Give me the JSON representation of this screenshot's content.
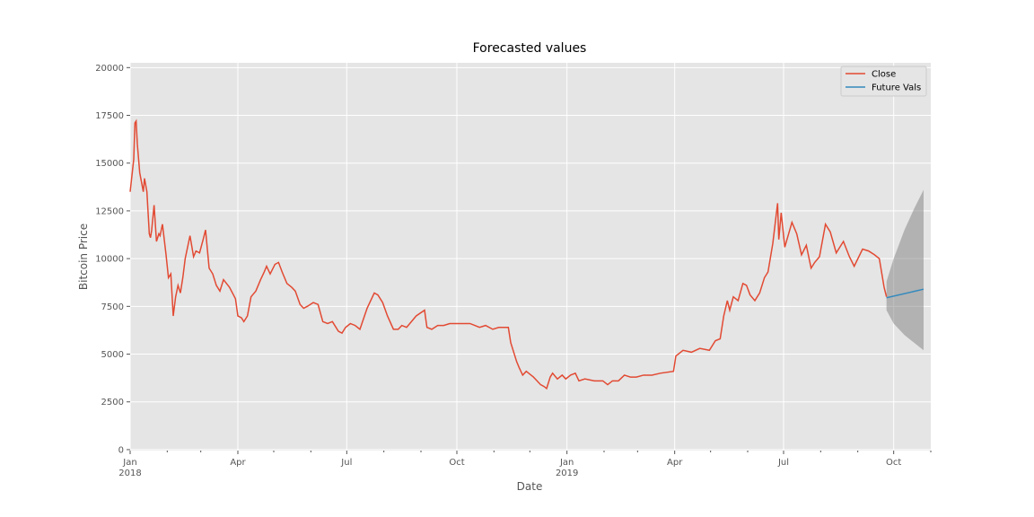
{
  "chart_data": {
    "type": "line",
    "title": "Forecasted values",
    "xlabel": "Date",
    "ylabel": "Bitcoin Price",
    "xlim": [
      "2018-01-01",
      "2019-11-01"
    ],
    "ylim": [
      -50,
      20250
    ],
    "yticks": [
      0,
      2500,
      5000,
      7500,
      10000,
      12500,
      15000,
      17500,
      20000
    ],
    "xticks": [
      {
        "value": "2018-01-01",
        "label": "Jan\n2018"
      },
      {
        "value": "2018-04-01",
        "label": "Apr"
      },
      {
        "value": "2018-07-01",
        "label": "Jul"
      },
      {
        "value": "2018-10-01",
        "label": "Oct"
      },
      {
        "value": "2019-01-01",
        "label": "Jan\n2019"
      },
      {
        "value": "2019-04-01",
        "label": "Apr"
      },
      {
        "value": "2019-07-01",
        "label": "Jul"
      },
      {
        "value": "2019-10-01",
        "label": "Oct"
      }
    ],
    "xticks_minor": [
      "2018-02-01",
      "2018-03-01",
      "2018-05-01",
      "2018-06-01",
      "2018-08-01",
      "2018-09-01",
      "2018-11-01",
      "2018-12-01",
      "2019-02-01",
      "2019-03-01",
      "2019-05-01",
      "2019-06-01",
      "2019-08-01",
      "2019-09-01",
      "2019-11-01"
    ],
    "grid": true,
    "legend": "upper right",
    "series": [
      {
        "name": "Close",
        "color": "#e24a33",
        "x": [
          "2018-01-01",
          "2018-01-04",
          "2018-01-05",
          "2018-01-06",
          "2018-01-07",
          "2018-01-09",
          "2018-01-12",
          "2018-01-13",
          "2018-01-15",
          "2018-01-17",
          "2018-01-18",
          "2018-01-19",
          "2018-01-21",
          "2018-01-23",
          "2018-01-25",
          "2018-01-26",
          "2018-01-28",
          "2018-01-31",
          "2018-02-02",
          "2018-02-04",
          "2018-02-06",
          "2018-02-08",
          "2018-02-10",
          "2018-02-12",
          "2018-02-14",
          "2018-02-16",
          "2018-02-20",
          "2018-02-23",
          "2018-02-25",
          "2018-02-28",
          "2018-03-03",
          "2018-03-05",
          "2018-03-08",
          "2018-03-11",
          "2018-03-14",
          "2018-03-17",
          "2018-03-20",
          "2018-03-25",
          "2018-03-30",
          "2018-04-01",
          "2018-04-04",
          "2018-04-06",
          "2018-04-09",
          "2018-04-12",
          "2018-04-16",
          "2018-04-20",
          "2018-04-23",
          "2018-04-25",
          "2018-04-28",
          "2018-05-02",
          "2018-05-05",
          "2018-05-08",
          "2018-05-12",
          "2018-05-16",
          "2018-05-19",
          "2018-05-23",
          "2018-05-26",
          "2018-05-29",
          "2018-06-03",
          "2018-06-07",
          "2018-06-11",
          "2018-06-15",
          "2018-06-19",
          "2018-06-24",
          "2018-06-27",
          "2018-06-30",
          "2018-07-04",
          "2018-07-08",
          "2018-07-12",
          "2018-07-18",
          "2018-07-24",
          "2018-07-27",
          "2018-07-31",
          "2018-08-04",
          "2018-08-09",
          "2018-08-13",
          "2018-08-16",
          "2018-08-20",
          "2018-08-24",
          "2018-08-28",
          "2018-09-04",
          "2018-09-06",
          "2018-09-10",
          "2018-09-15",
          "2018-09-20",
          "2018-09-25",
          "2018-09-30",
          "2018-10-05",
          "2018-10-12",
          "2018-10-20",
          "2018-10-25",
          "2018-10-31",
          "2018-11-05",
          "2018-11-13",
          "2018-11-15",
          "2018-11-20",
          "2018-11-22",
          "2018-11-25",
          "2018-11-28",
          "2018-11-30",
          "2018-12-04",
          "2018-12-10",
          "2018-12-13",
          "2018-12-15",
          "2018-12-18",
          "2018-12-20",
          "2018-12-24",
          "2018-12-28",
          "2018-12-31",
          "2019-01-04",
          "2019-01-08",
          "2019-01-11",
          "2019-01-16",
          "2019-01-24",
          "2019-01-31",
          "2019-02-04",
          "2019-02-08",
          "2019-02-13",
          "2019-02-18",
          "2019-02-23",
          "2019-02-28",
          "2019-03-06",
          "2019-03-13",
          "2019-03-20",
          "2019-03-31",
          "2019-04-02",
          "2019-04-08",
          "2019-04-15",
          "2019-04-22",
          "2019-04-30",
          "2019-05-05",
          "2019-05-09",
          "2019-05-12",
          "2019-05-15",
          "2019-05-17",
          "2019-05-20",
          "2019-05-24",
          "2019-05-28",
          "2019-05-31",
          "2019-06-03",
          "2019-06-07",
          "2019-06-11",
          "2019-06-15",
          "2019-06-18",
          "2019-06-22",
          "2019-06-26",
          "2019-06-27",
          "2019-06-29",
          "2019-07-02",
          "2019-07-08",
          "2019-07-12",
          "2019-07-16",
          "2019-07-20",
          "2019-07-24",
          "2019-07-27",
          "2019-07-31",
          "2019-08-05",
          "2019-08-09",
          "2019-08-14",
          "2019-08-20",
          "2019-08-25",
          "2019-08-29",
          "2019-09-05",
          "2019-09-10",
          "2019-09-15",
          "2019-09-19",
          "2019-09-23",
          "2019-09-25"
        ],
        "values": [
          13500,
          15200,
          17100,
          17200,
          16000,
          14500,
          13500,
          14200,
          13500,
          11300,
          11100,
          11500,
          12800,
          10900,
          11300,
          11200,
          11800,
          10200,
          9000,
          9200,
          7000,
          8000,
          8600,
          8200,
          9000,
          10000,
          11200,
          10100,
          10400,
          10300,
          11000,
          11500,
          9500,
          9200,
          8600,
          8300,
          8900,
          8500,
          7900,
          7000,
          6900,
          6700,
          7000,
          8000,
          8300,
          8900,
          9300,
          9600,
          9200,
          9700,
          9800,
          9300,
          8700,
          8500,
          8300,
          7600,
          7400,
          7500,
          7700,
          7600,
          6700,
          6600,
          6700,
          6200,
          6100,
          6400,
          6600,
          6500,
          6300,
          7400,
          8200,
          8100,
          7700,
          7000,
          6300,
          6300,
          6500,
          6400,
          6700,
          7000,
          7300,
          6400,
          6300,
          6500,
          6500,
          6600,
          6600,
          6600,
          6600,
          6400,
          6500,
          6300,
          6400,
          6400,
          5600,
          4600,
          4300,
          3900,
          4100,
          4000,
          3800,
          3400,
          3300,
          3200,
          3800,
          4000,
          3700,
          3900,
          3700,
          3900,
          4000,
          3600,
          3700,
          3600,
          3600,
          3400,
          3600,
          3600,
          3900,
          3800,
          3800,
          3900,
          3900,
          4000,
          4100,
          4900,
          5200,
          5100,
          5300,
          5200,
          5700,
          5800,
          7000,
          7800,
          7300,
          8000,
          7800,
          8700,
          8600,
          8100,
          7800,
          8200,
          9000,
          9300,
          10800,
          12900,
          11000,
          12400,
          10600,
          11900,
          11300,
          10200,
          10700,
          9500,
          9800,
          10100,
          11800,
          11400,
          10300,
          10900,
          10100,
          9600,
          10500,
          10400,
          10200,
          10000,
          8500,
          8000
        ]
      },
      {
        "name": "Future Vals",
        "color": "#348abd",
        "x": [
          "2019-09-25",
          "2019-10-26"
        ],
        "values": [
          7950,
          8400
        ]
      }
    ],
    "interval": {
      "color": "#808080",
      "x": [
        "2019-09-25",
        "2019-10-01",
        "2019-10-10",
        "2019-10-18",
        "2019-10-26"
      ],
      "lower": [
        7300,
        6600,
        6000,
        5600,
        5200
      ],
      "upper": [
        8800,
        10000,
        11500,
        12600,
        13600
      ]
    }
  }
}
